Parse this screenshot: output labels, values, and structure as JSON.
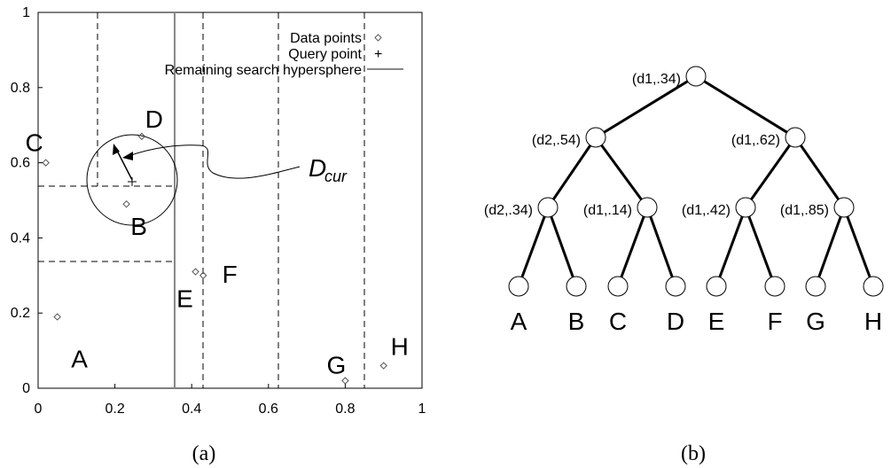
{
  "panel_a": {
    "caption": "(a)",
    "legend": {
      "data_points": "Data points",
      "query_point": "Query point",
      "hypersphere": "Remaining search hypersphere"
    },
    "x_ticks": [
      "0",
      "0.2",
      "0.4",
      "0.6",
      "0.8",
      "1"
    ],
    "y_ticks": [
      "0",
      "0.2",
      "0.4",
      "0.6",
      "0.8",
      "1"
    ],
    "dcur_main": "D",
    "dcur_sub": "cur"
  },
  "panel_b": {
    "caption": "(b)",
    "nodes": [
      "(d1,.34)",
      "(d2,.54)",
      "(d1,.62)",
      "(d2,.34)",
      "(d1,.14)",
      "(d1,.42)",
      "(d1,.85)"
    ],
    "leaves": [
      "A",
      "B",
      "C",
      "D",
      "E",
      "F",
      "G",
      "H"
    ]
  },
  "chart_data": {
    "type": "scatter",
    "xlim": [
      0,
      1
    ],
    "ylim": [
      0,
      1
    ],
    "legend_position": "top-right",
    "points": [
      {
        "label": "A",
        "x": 0.05,
        "y": 0.19
      },
      {
        "label": "B",
        "x": 0.23,
        "y": 0.49
      },
      {
        "label": "C",
        "x": 0.02,
        "y": 0.6
      },
      {
        "label": "D",
        "x": 0.27,
        "y": 0.67
      },
      {
        "label": "E",
        "x": 0.41,
        "y": 0.31
      },
      {
        "label": "F",
        "x": 0.43,
        "y": 0.3
      },
      {
        "label": "G",
        "x": 0.8,
        "y": 0.02
      },
      {
        "label": "H",
        "x": 0.9,
        "y": 0.06
      }
    ],
    "query_point": {
      "x": 0.25,
      "y": 0.55
    },
    "search_radius": 0.12
  }
}
